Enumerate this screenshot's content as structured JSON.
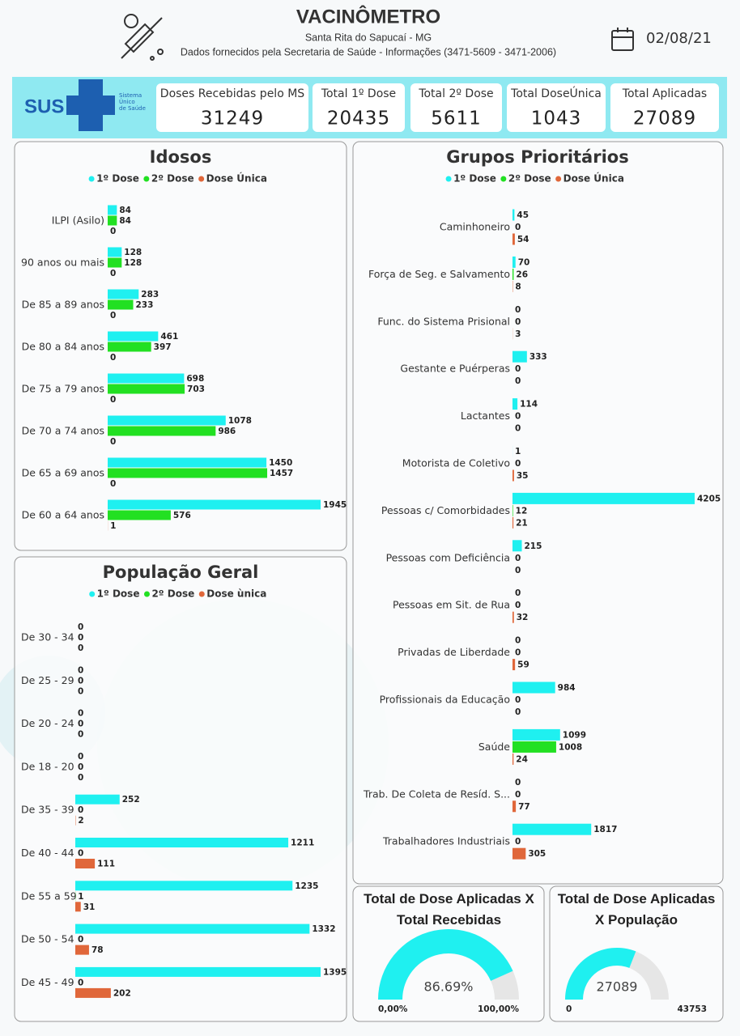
{
  "header": {
    "title": "VACINÔMETRO",
    "subtitle": "Santa Rita do Sapucaí - MG",
    "source": "Dados fornecidos pela Secretaria de Saúde - Informações (3471-5609 - 3471-2006)",
    "date": "02/08/21"
  },
  "logo": {
    "name": "SUS",
    "lines": [
      "Sistema",
      "Único",
      "de Saúde"
    ]
  },
  "kpis": [
    {
      "label": "Doses Recebidas pelo MS",
      "value": 31249
    },
    {
      "label": "Total 1º Dose",
      "value": 20435
    },
    {
      "label": "Total 2º Dose",
      "value": 5611
    },
    {
      "label": "Total DoseÚnica",
      "value": 1043
    },
    {
      "label": "Total Aplicadas",
      "value": 27089
    }
  ],
  "chart_data": [
    {
      "type": "bar",
      "title": "Idosos",
      "categories": [
        "ILPI (Asilo)",
        "90 anos ou mais",
        "De 85 a 89 anos",
        "De 80 a 84 anos",
        "De 75 a 79 anos",
        "De 70 a 74 anos",
        "De 65 a 69 anos",
        "De 60 a 64 anos"
      ],
      "series": [
        {
          "name": "1º Dose",
          "color": "#1ff0f0",
          "values": [
            84,
            128,
            283,
            461,
            698,
            1078,
            1450,
            1945
          ]
        },
        {
          "name": "2º Dose",
          "color": "#22e022",
          "values": [
            84,
            128,
            233,
            397,
            703,
            986,
            1457,
            576
          ]
        },
        {
          "name": "Dose Única",
          "color": "#e0673a",
          "values": [
            0,
            0,
            0,
            0,
            0,
            0,
            0,
            1
          ]
        }
      ]
    },
    {
      "type": "bar",
      "title": "Grupos Prioritários",
      "categories": [
        "Caminhoneiro",
        "Força de Seg. e Salvamento",
        "Func. do Sistema Prisional",
        "Gestante e Puérperas",
        "Lactantes",
        "Motorista de Coletivo",
        "Pessoas c/ Comorbidades",
        "Pessoas com Deficiência",
        "Pessoas em Sit. de Rua",
        "Privadas de Liberdade",
        "Profissionais da Educação",
        "Saúde",
        "Trab. De Coleta de Resíd. S...",
        "Trabalhadores Industriais"
      ],
      "series": [
        {
          "name": "1º Dose",
          "color": "#1ff0f0",
          "values": [
            45,
            70,
            0,
            333,
            114,
            1,
            4205,
            215,
            0,
            0,
            984,
            1099,
            0,
            1817
          ]
        },
        {
          "name": "2º Dose",
          "color": "#22e022",
          "values": [
            0,
            26,
            0,
            0,
            0,
            0,
            12,
            0,
            0,
            0,
            0,
            1008,
            0,
            0
          ]
        },
        {
          "name": "Dose Única",
          "color": "#e0673a",
          "values": [
            54,
            8,
            3,
            0,
            0,
            35,
            21,
            0,
            32,
            59,
            0,
            24,
            77,
            305
          ]
        }
      ]
    },
    {
      "type": "bar",
      "title": "População Geral",
      "categories": [
        "De 30 - 34",
        "De 25 - 29",
        "De 20 - 24",
        "De 18 - 20",
        "De 35 - 39",
        "De 40 - 44",
        "De 55 a 59",
        "De 50 - 54",
        "De 45 - 49"
      ],
      "series": [
        {
          "name": "1º Dose",
          "color": "#1ff0f0",
          "values": [
            0,
            0,
            0,
            0,
            252,
            1211,
            1235,
            1332,
            1395
          ]
        },
        {
          "name": "2º Dose",
          "color": "#22e022",
          "values": [
            0,
            0,
            0,
            0,
            0,
            0,
            1,
            0,
            0
          ]
        },
        {
          "name": "Dose ùnica",
          "color": "#e0673a",
          "values": [
            0,
            0,
            0,
            0,
            2,
            111,
            31,
            78,
            202
          ]
        }
      ]
    },
    {
      "type": "gauge",
      "title": "Total de Dose Aplicadas X Total Recebidas",
      "value": 86.69,
      "value_label": "86.69%",
      "min": {
        "value": 0,
        "label": "0,00%"
      },
      "max": {
        "value": 100,
        "label": "100,00%"
      },
      "color": "#1ff0f0"
    },
    {
      "type": "gauge",
      "title": "Total de Dose Aplicadas X População",
      "value": 27089,
      "min": 0,
      "max": 43753,
      "color": "#1ff0f0"
    }
  ]
}
